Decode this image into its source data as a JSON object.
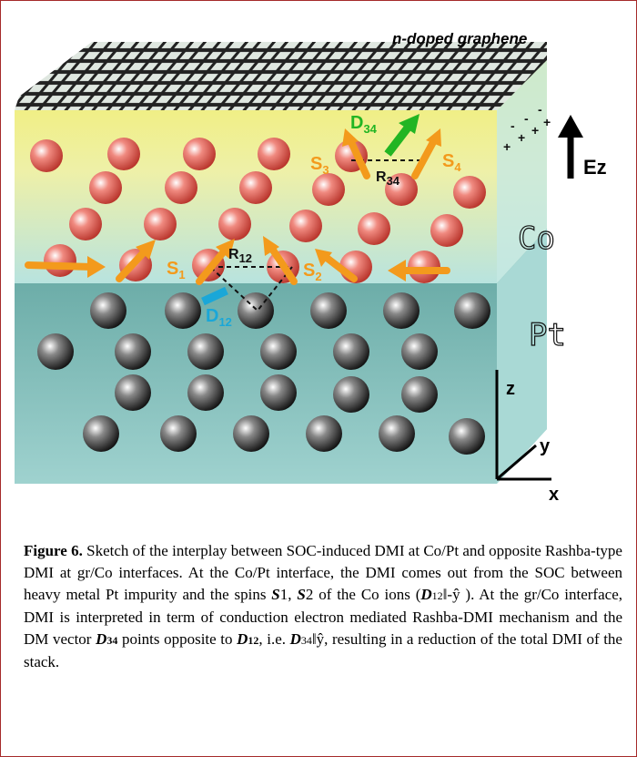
{
  "figure": {
    "labels": {
      "graphene": "n-doped graphene",
      "d34": {
        "main": "D",
        "sub": "34"
      },
      "s3": {
        "main": "S",
        "sub": "3"
      },
      "s4": {
        "main": "S",
        "sub": "4"
      },
      "r34": {
        "main": "R",
        "sub": "34"
      },
      "ez": "Ez",
      "co": "Co",
      "s1": {
        "main": "S",
        "sub": "1"
      },
      "r12": {
        "main": "R",
        "sub": "12"
      },
      "s2": {
        "main": "S",
        "sub": "2"
      },
      "d12": {
        "main": "D",
        "sub": "12"
      },
      "pt": "Pt",
      "z": "z",
      "y": "y",
      "x": "x",
      "charges": [
        "-",
        "-",
        "-",
        "+",
        "+",
        "+",
        "+"
      ]
    },
    "caption": {
      "runs": [
        "Figure 6.",
        " Sketch of the interplay between SOC-induced DMI at Co/Pt and opposite Rashba-type DMI at gr/Co interfaces. At the Co/Pt interface, the DMI comes out from the SOC between heavy metal Pt impurity and the spins ",
        "S",
        "1",
        ", ",
        "S",
        "2",
        " of the Co ions (",
        "D",
        "12",
        "‖-ŷ ). At the gr/Co interface, DMI is interpreted in term of conduction electron mediated Rashba-DMI mechanism and the DM vector ",
        "D",
        "34",
        " points opposite to ",
        "D",
        "12",
        ", i.e. ",
        "D",
        "34",
        "‖ŷ, resulting in a reduction of the total DMI of the stack."
      ]
    }
  }
}
